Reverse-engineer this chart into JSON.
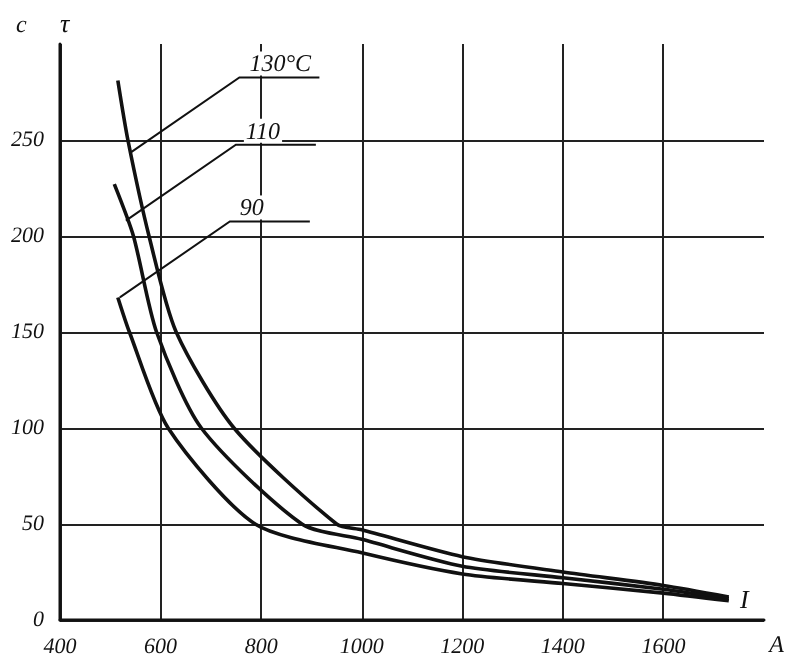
{
  "chart_data": {
    "type": "line",
    "xlabel": "I",
    "ylabel": "τ",
    "xlim": [
      400,
      1800
    ],
    "ylim": [
      0,
      300
    ],
    "xticks": [
      400,
      600,
      800,
      1000,
      1200,
      1400,
      1600
    ],
    "yticks": [
      0,
      50,
      100,
      150,
      200,
      250
    ],
    "grid": true,
    "marker": "none",
    "series": [
      {
        "color": "#111111",
        "x": [
          515,
          535,
          577,
          631,
          746,
          950,
          1000,
          1200,
          1400,
          1600,
          1730
        ],
        "values": [
          281,
          250,
          200,
          150,
          100,
          50,
          47,
          33,
          25,
          18,
          12
        ]
      },
      {
        "color": "#111111",
        "x": [
          508,
          546,
          592,
          681,
          881,
          1000,
          1200,
          1400,
          1600,
          1730
        ],
        "values": [
          227,
          200,
          150,
          100,
          50,
          42,
          28,
          22,
          16,
          11
        ]
      },
      {
        "color": "#111111",
        "x": [
          515,
          538,
          615,
          788,
          1000,
          1200,
          1400,
          1600,
          1730
        ],
        "values": [
          168,
          150,
          100,
          50,
          35,
          24,
          19,
          14,
          10
        ]
      }
    ],
    "annotations": [
      {
        "text": "130°C",
        "x": 538,
        "y": 243
      },
      {
        "text": "110",
        "x": 531,
        "y": 208
      },
      {
        "text": "90",
        "x": 519,
        "y": 168
      },
      "c",
      "A"
    ]
  }
}
